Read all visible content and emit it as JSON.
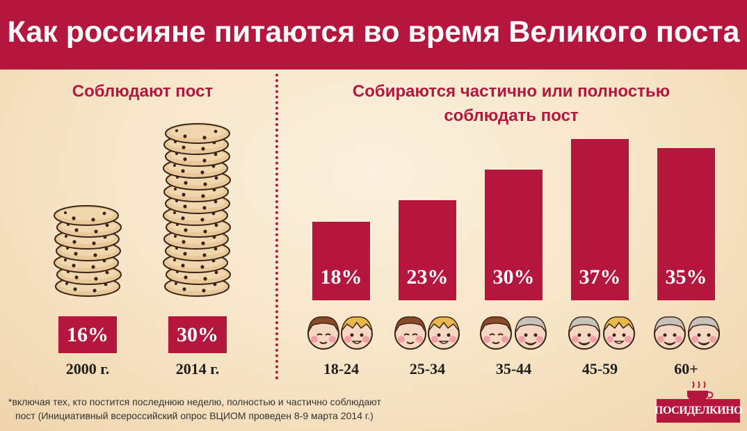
{
  "title": "Как россияне питаются во время Великого поста",
  "left_section": {
    "title": "Соблюдают пост",
    "items": [
      {
        "percent": "16%",
        "year": "2000 г."
      },
      {
        "percent": "30%",
        "year": "2014 г."
      }
    ]
  },
  "right_section": {
    "title_line1": "Собираются частично или полностью",
    "title_line2": "соблюдать пост"
  },
  "chart_data": {
    "type": "bar",
    "categories": [
      "18-24",
      "25-34",
      "35-44",
      "45-59",
      "60+"
    ],
    "values": [
      18,
      23,
      30,
      37,
      35
    ],
    "value_labels": [
      "18%",
      "23%",
      "30%",
      "37%",
      "35%"
    ],
    "title": "Собираются частично или полностью соблюдать пост",
    "xlabel": "",
    "ylabel": "",
    "colors": {
      "bar": "#b5163d"
    }
  },
  "footnote_line1": "*включая тех, кто постится последнюю неделю, полностью и частично соблюдают",
  "footnote_line2": "пост (Инициативный всероссийский опрос ВЦИОМ проведен 8-9 марта 2014 г.)",
  "logo_text": "ПОСИДЕЛКИНО",
  "colors": {
    "accent": "#b5163d",
    "background": "#f8e8cc",
    "pancake": "#e9c89a"
  }
}
